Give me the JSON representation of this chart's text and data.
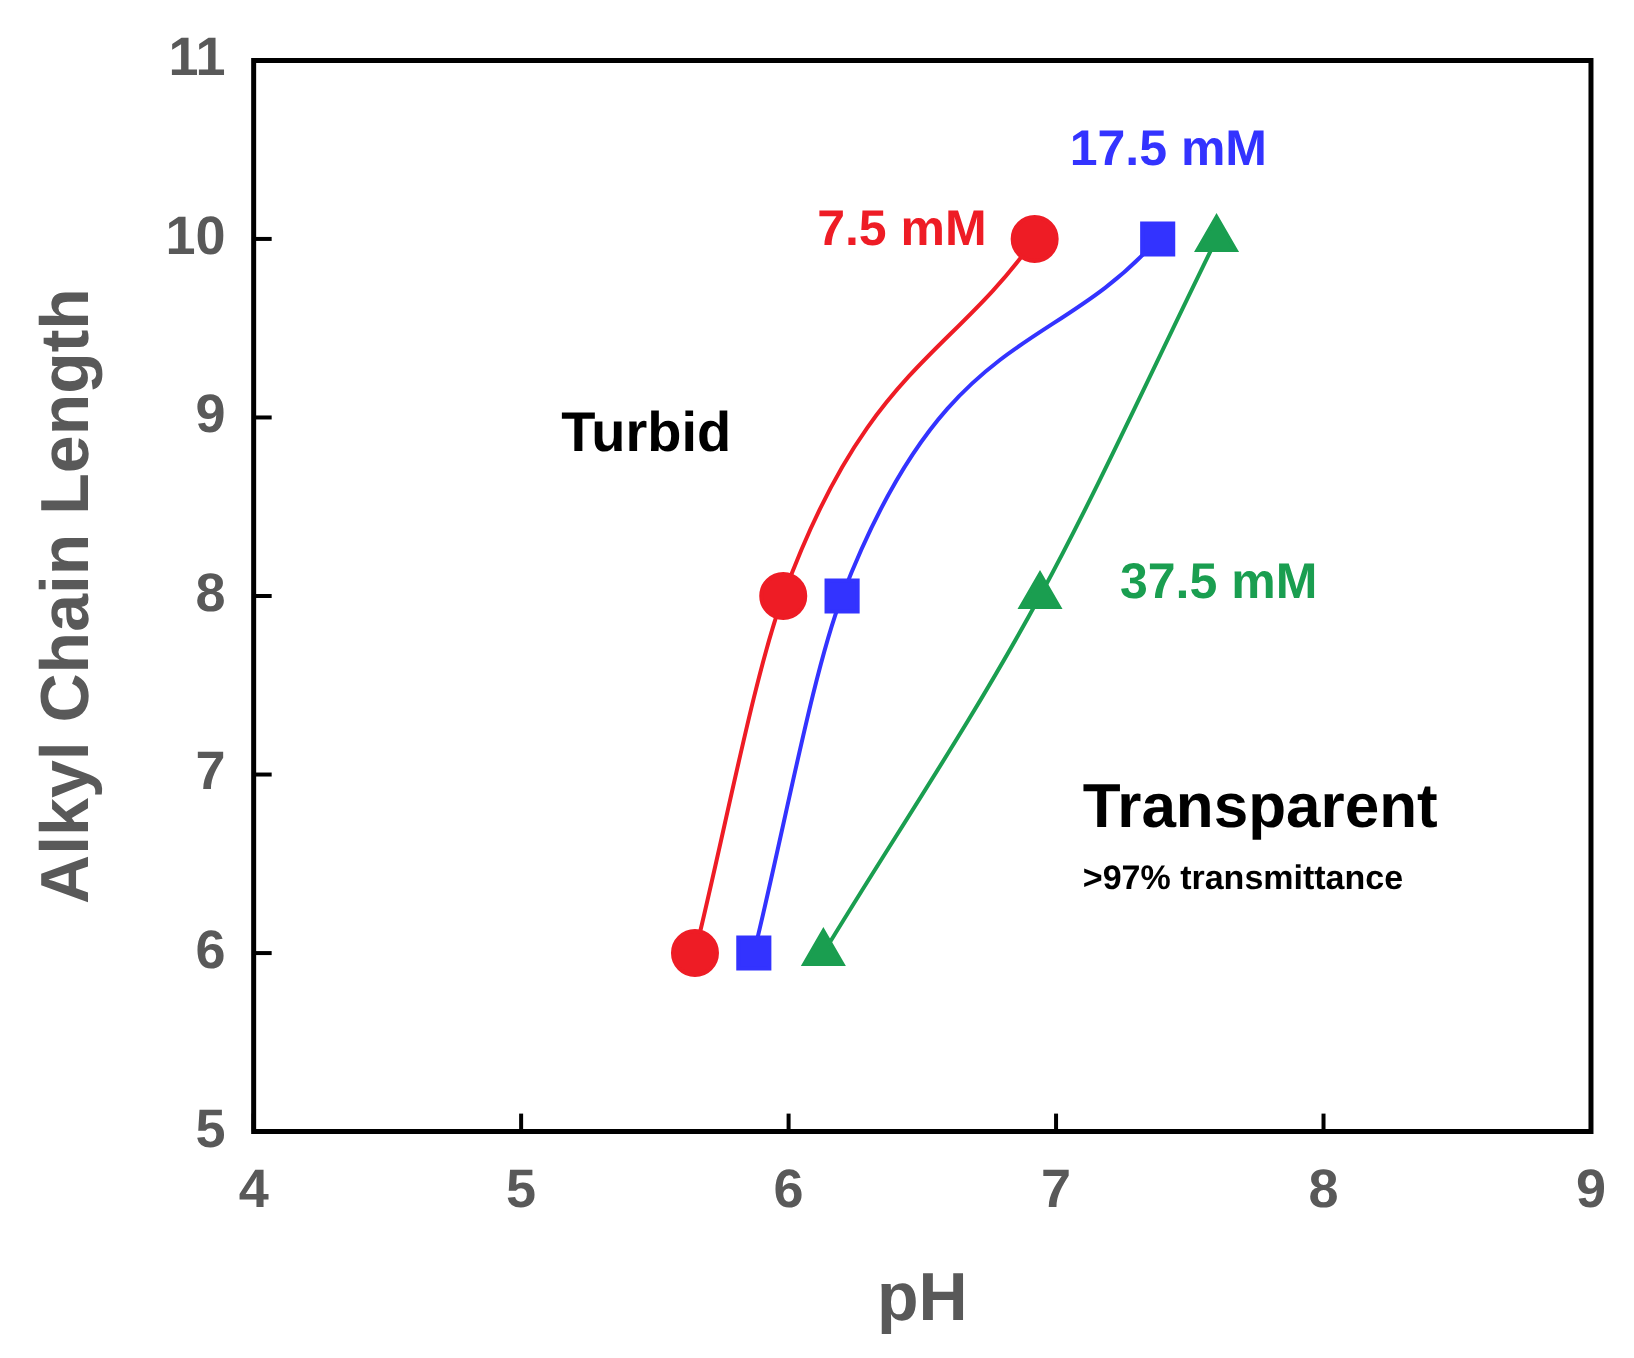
{
  "chart_data": {
    "type": "line",
    "xlabel": "pH",
    "ylabel": "Alkyl Chain Length",
    "xlim": [
      4,
      9
    ],
    "xticks": [
      4,
      5,
      6,
      7,
      8,
      9
    ],
    "ylim": [
      5,
      11
    ],
    "yticks": [
      5,
      6,
      7,
      8,
      9,
      10,
      11
    ],
    "grid": false,
    "legend": false,
    "series": [
      {
        "name": "7.5 mM",
        "color": "#ee1c25",
        "marker": "circle",
        "x": [
          5.65,
          5.98,
          6.92
        ],
        "values": [
          6,
          8,
          10
        ]
      },
      {
        "name": "17.5 mM",
        "color": "#3333ff",
        "marker": "square",
        "x": [
          5.87,
          6.2,
          7.38
        ],
        "values": [
          6,
          8,
          10
        ]
      },
      {
        "name": "37.5 mM",
        "color": "#1a9e50",
        "marker": "triangle",
        "x": [
          6.13,
          6.94,
          7.6
        ],
        "values": [
          6,
          8,
          10
        ]
      }
    ],
    "annotations": [
      "Turbid",
      "Transparent",
      ">97% transmittance"
    ]
  }
}
